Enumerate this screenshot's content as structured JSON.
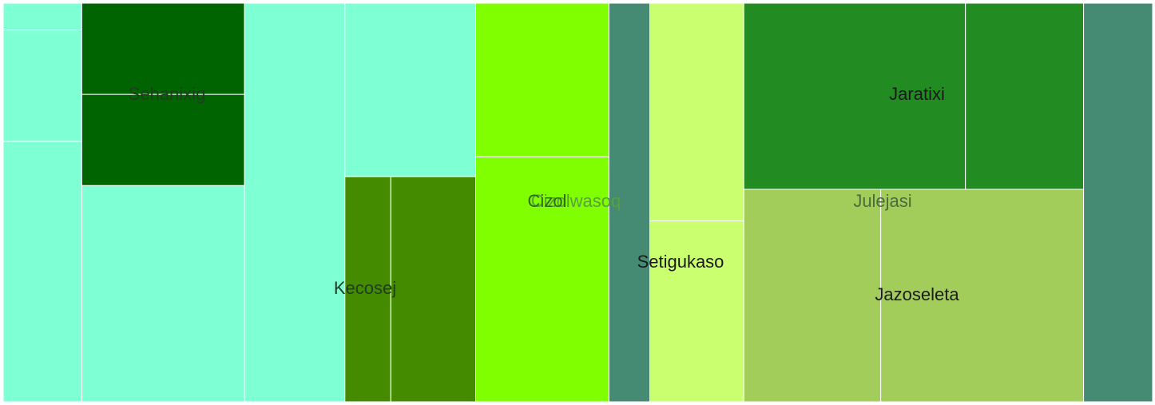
{
  "chart_data": {
    "type": "treemap",
    "title": "",
    "colors": {
      "Sehanixig": "#006400",
      "Kecosej": "#458b00",
      "Cizol": "#7fff00",
      "Setigukaso": "#caff70",
      "Jaratixi": "#228b22",
      "Jazoseleta": "#a2cd5a",
      "aquamarine": "#7fffd4",
      "teal": "#458b74"
    },
    "parent_labels": [
      {
        "name": "Sehanixig",
        "text_color": "#1f3d1f"
      },
      {
        "name": "Kecosej",
        "text_color": "#1f3d1f"
      },
      {
        "name": "Cizolwasoq",
        "text_color": "#5aa03c"
      },
      {
        "name": "Julejasi",
        "text_color": "#4a6b3c"
      }
    ],
    "leaf_labels": [
      {
        "name": "Cizol",
        "text_color": "#2e6b1a"
      },
      {
        "name": "Setigukaso",
        "text_color": "#1a1a1a"
      },
      {
        "name": "Jaratixi",
        "text_color": "#1a1a1a"
      },
      {
        "name": "Jazoseleta",
        "text_color": "#1a1a1a"
      }
    ],
    "groups": [
      {
        "name": "",
        "leaves": [
          {
            "value": 3.3,
            "color": "aquamarine"
          },
          {
            "value": 13.7,
            "color": "aquamarine"
          },
          {
            "value": 32.0,
            "color": "aquamarine"
          }
        ]
      },
      {
        "name": "Sehanixig",
        "leaves": [
          {
            "value": 23.2,
            "color": "Sehanixig"
          },
          {
            "value": 23.2,
            "color": "Sehanixig"
          },
          {
            "value": 55.0,
            "color": "aquamarine"
          }
        ]
      },
      {
        "name": "",
        "leaves": [
          {
            "value": 62.6,
            "color": "aquamarine"
          }
        ]
      },
      {
        "name": "Kecosej",
        "leaves": [
          {
            "value": 28.6,
            "color": "Kecosej"
          },
          {
            "value": 52.9,
            "color": "Kecosej"
          }
        ]
      },
      {
        "name": "Cizolwasoq",
        "leaves": [
          {
            "value": 32.0,
            "color": "Cizol"
          },
          {
            "value": 51.0,
            "color": "Cizol"
          }
        ]
      },
      {
        "name": "",
        "leaves": [
          {
            "value": 25.5,
            "color": "teal"
          }
        ]
      },
      {
        "name": "Setigukaso",
        "leaves": [
          {
            "value": 32.0,
            "color": "Setigukaso"
          },
          {
            "value": 26.6,
            "color": "Setigukaso"
          }
        ]
      },
      {
        "name": "Julejasi",
        "leaves": [
          {
            "value": 64.5,
            "color": "Jaratixi"
          },
          {
            "value": 34.4,
            "color": "Jaratixi"
          },
          {
            "value": 45.5,
            "color": "Jazoseleta"
          },
          {
            "value": 67.4,
            "color": "Jazoseleta"
          }
        ]
      },
      {
        "name": "",
        "leaves": [
          {
            "value": 43.0,
            "color": "teal"
          }
        ]
      }
    ]
  }
}
